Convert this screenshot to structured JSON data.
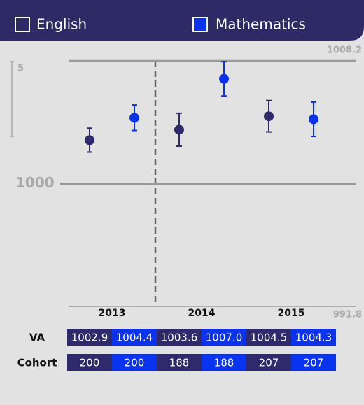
{
  "chart_data": {
    "type": "dot_error",
    "categories": [
      "2013",
      "2014",
      "2015"
    ],
    "series": [
      {
        "name": "English",
        "color": "#2e2a6b",
        "values": [
          1002.9,
          1003.6,
          1004.5
        ],
        "value_labels": [
          "1002.9",
          "1003.6",
          "1004.5"
        ],
        "errors": [
          0.8,
          1.1,
          1.05
        ],
        "cohort": [
          200,
          188,
          207
        ]
      },
      {
        "name": "Mathematics",
        "color": "#0a33f0",
        "values": [
          1004.4,
          1007.0,
          1004.3
        ],
        "value_labels": [
          "1004.4",
          "1007.0",
          "1004.3"
        ],
        "errors": [
          0.85,
          1.15,
          1.15
        ],
        "cohort": [
          200,
          188,
          207
        ]
      }
    ],
    "ylim": [
      991.8,
      1008.2
    ],
    "yticks": [
      991.8,
      1000,
      1008.2
    ],
    "scale_bar": 5,
    "row_labels": [
      "VA",
      "Cohort"
    ]
  }
}
